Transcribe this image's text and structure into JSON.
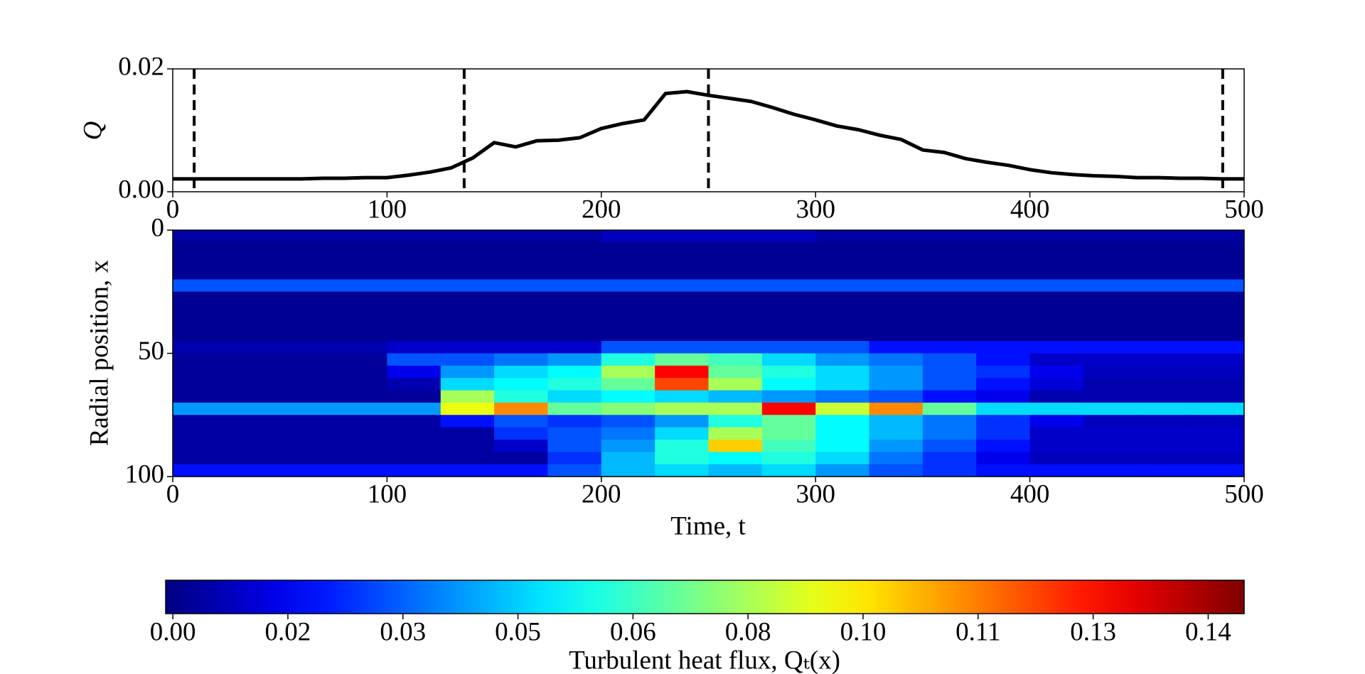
{
  "chart_data": [
    {
      "type": "line",
      "ylabel": "Q",
      "x": [
        0,
        10,
        20,
        30,
        40,
        50,
        60,
        70,
        80,
        90,
        100,
        110,
        120,
        130,
        140,
        150,
        160,
        170,
        180,
        190,
        200,
        210,
        220,
        230,
        240,
        250,
        260,
        270,
        280,
        290,
        300,
        310,
        320,
        330,
        340,
        350,
        360,
        370,
        380,
        390,
        400,
        410,
        420,
        430,
        440,
        450,
        460,
        470,
        480,
        490,
        500
      ],
      "series": [
        {
          "name": "Q",
          "color": "#000000",
          "values": [
            0.0021,
            0.0021,
            0.0021,
            0.0021,
            0.0021,
            0.0021,
            0.0021,
            0.0022,
            0.0022,
            0.0023,
            0.0023,
            0.0027,
            0.0032,
            0.0039,
            0.0055,
            0.008,
            0.0073,
            0.0083,
            0.0084,
            0.0088,
            0.0103,
            0.0111,
            0.0117,
            0.016,
            0.0163,
            0.0157,
            0.0152,
            0.0147,
            0.0137,
            0.0126,
            0.0117,
            0.0107,
            0.0101,
            0.0092,
            0.0085,
            0.0068,
            0.0064,
            0.0054,
            0.0048,
            0.0043,
            0.0036,
            0.0031,
            0.0028,
            0.0026,
            0.0025,
            0.0023,
            0.0023,
            0.0022,
            0.0022,
            0.0021,
            0.0021
          ]
        }
      ],
      "vlines": [
        10,
        136,
        250,
        490
      ],
      "xlim": [
        0,
        500
      ],
      "xticks": [
        0,
        100,
        200,
        300,
        400,
        500
      ],
      "ylim": [
        0,
        0.02
      ],
      "yticks": [
        {
          "value": 0,
          "label": "0.00"
        },
        {
          "value": 0.02,
          "label": "0.02"
        }
      ]
    },
    {
      "type": "heatmap",
      "xlabel": "Time, t",
      "ylabel": "Radial position, x",
      "colormap": "jet",
      "xbins": [
        0,
        25,
        50,
        75,
        100,
        125,
        150,
        175,
        200,
        225,
        250,
        275,
        300,
        325,
        350,
        375,
        400,
        425,
        450,
        475,
        500
      ],
      "ybins": [
        0,
        5,
        10,
        15,
        20,
        25,
        30,
        35,
        40,
        45,
        50,
        55,
        60,
        65,
        70,
        75,
        80,
        85,
        90,
        95,
        100
      ],
      "values": [
        [
          0.004,
          0.004,
          0.004,
          0.004,
          0.004,
          0.004,
          0.004,
          0.004,
          0.008,
          0.008,
          0.008,
          0.008,
          0.004,
          0.004,
          0.004,
          0.004,
          0.004,
          0.004,
          0.004,
          0.004
        ],
        [
          0.002,
          0.002,
          0.002,
          0.002,
          0.002,
          0.002,
          0.002,
          0.002,
          0.002,
          0.002,
          0.002,
          0.002,
          0.002,
          0.002,
          0.002,
          0.002,
          0.002,
          0.002,
          0.002,
          0.002
        ],
        [
          0.002,
          0.002,
          0.002,
          0.002,
          0.002,
          0.002,
          0.002,
          0.002,
          0.002,
          0.002,
          0.002,
          0.002,
          0.002,
          0.002,
          0.002,
          0.002,
          0.002,
          0.002,
          0.002,
          0.002
        ],
        [
          0.002,
          0.002,
          0.002,
          0.002,
          0.002,
          0.002,
          0.002,
          0.002,
          0.002,
          0.002,
          0.002,
          0.002,
          0.002,
          0.002,
          0.002,
          0.002,
          0.002,
          0.002,
          0.002,
          0.002
        ],
        [
          0.03,
          0.03,
          0.03,
          0.03,
          0.03,
          0.03,
          0.03,
          0.03,
          0.03,
          0.03,
          0.03,
          0.03,
          0.03,
          0.03,
          0.03,
          0.03,
          0.03,
          0.03,
          0.03,
          0.03
        ],
        [
          0.002,
          0.002,
          0.002,
          0.002,
          0.002,
          0.002,
          0.002,
          0.002,
          0.002,
          0.002,
          0.002,
          0.002,
          0.002,
          0.002,
          0.002,
          0.002,
          0.002,
          0.002,
          0.002,
          0.002
        ],
        [
          0.002,
          0.002,
          0.002,
          0.002,
          0.002,
          0.002,
          0.002,
          0.002,
          0.002,
          0.002,
          0.002,
          0.002,
          0.002,
          0.002,
          0.002,
          0.002,
          0.002,
          0.002,
          0.002,
          0.002
        ],
        [
          0.002,
          0.002,
          0.002,
          0.002,
          0.002,
          0.002,
          0.002,
          0.002,
          0.002,
          0.002,
          0.002,
          0.002,
          0.002,
          0.002,
          0.002,
          0.002,
          0.002,
          0.002,
          0.002,
          0.002
        ],
        [
          0.002,
          0.002,
          0.002,
          0.002,
          0.002,
          0.002,
          0.002,
          0.002,
          0.002,
          0.002,
          0.002,
          0.002,
          0.002,
          0.002,
          0.002,
          0.002,
          0.002,
          0.002,
          0.002,
          0.002
        ],
        [
          0.006,
          0.006,
          0.006,
          0.006,
          0.01,
          0.01,
          0.01,
          0.01,
          0.03,
          0.03,
          0.03,
          0.03,
          0.03,
          0.02,
          0.02,
          0.02,
          0.02,
          0.02,
          0.02,
          0.02
        ],
        [
          0.003,
          0.003,
          0.003,
          0.003,
          0.03,
          0.03,
          0.035,
          0.04,
          0.06,
          0.07,
          0.065,
          0.05,
          0.04,
          0.035,
          0.03,
          0.02,
          0.01,
          0.01,
          0.01,
          0.01
        ],
        [
          0.003,
          0.003,
          0.003,
          0.003,
          0.015,
          0.04,
          0.05,
          0.055,
          0.08,
          0.13,
          0.07,
          0.06,
          0.05,
          0.04,
          0.03,
          0.025,
          0.015,
          0.008,
          0.008,
          0.008
        ],
        [
          0.003,
          0.003,
          0.003,
          0.003,
          0.006,
          0.05,
          0.055,
          0.06,
          0.07,
          0.12,
          0.08,
          0.055,
          0.05,
          0.04,
          0.03,
          0.02,
          0.012,
          0.006,
          0.006,
          0.006
        ],
        [
          0.003,
          0.003,
          0.003,
          0.003,
          0.003,
          0.08,
          0.06,
          0.05,
          0.055,
          0.05,
          0.045,
          0.04,
          0.035,
          0.03,
          0.02,
          0.015,
          0.006,
          0.006,
          0.006,
          0.006
        ],
        [
          0.04,
          0.04,
          0.04,
          0.04,
          0.04,
          0.09,
          0.11,
          0.07,
          0.075,
          0.08,
          0.08,
          0.13,
          0.085,
          0.11,
          0.07,
          0.05,
          0.05,
          0.05,
          0.05,
          0.05
        ],
        [
          0.004,
          0.004,
          0.004,
          0.004,
          0.004,
          0.02,
          0.03,
          0.025,
          0.03,
          0.04,
          0.06,
          0.07,
          0.055,
          0.045,
          0.035,
          0.025,
          0.015,
          0.008,
          0.008,
          0.008
        ],
        [
          0.004,
          0.004,
          0.004,
          0.004,
          0.004,
          0.004,
          0.025,
          0.03,
          0.035,
          0.05,
          0.08,
          0.07,
          0.055,
          0.045,
          0.035,
          0.025,
          0.01,
          0.01,
          0.01,
          0.01
        ],
        [
          0.004,
          0.004,
          0.004,
          0.004,
          0.004,
          0.004,
          0.01,
          0.03,
          0.04,
          0.06,
          0.1,
          0.065,
          0.055,
          0.04,
          0.03,
          0.02,
          0.01,
          0.01,
          0.01,
          0.01
        ],
        [
          0.004,
          0.004,
          0.004,
          0.004,
          0.004,
          0.004,
          0.004,
          0.025,
          0.045,
          0.06,
          0.055,
          0.06,
          0.05,
          0.035,
          0.025,
          0.015,
          0.008,
          0.008,
          0.008,
          0.008
        ],
        [
          0.02,
          0.02,
          0.02,
          0.02,
          0.02,
          0.02,
          0.02,
          0.03,
          0.045,
          0.05,
          0.045,
          0.05,
          0.04,
          0.03,
          0.025,
          0.02,
          0.02,
          0.02,
          0.02,
          0.02
        ]
      ],
      "xlim": [
        0,
        500
      ],
      "xticks": [
        0,
        100,
        200,
        300,
        400,
        500
      ],
      "ylim": [
        100,
        0
      ],
      "yticks": [
        0,
        50,
        100
      ],
      "colorbar": {
        "label": "Turbulent heat flux, Qₜ(x)",
        "lim": [
          -0.001,
          0.149
        ],
        "ticks": [
          {
            "value": 0,
            "label": "0.00"
          },
          {
            "value": 0.016,
            "label": "0.02"
          },
          {
            "value": 0.032,
            "label": "0.03"
          },
          {
            "value": 0.048,
            "label": "0.05"
          },
          {
            "value": 0.064,
            "label": "0.06"
          },
          {
            "value": 0.08,
            "label": "0.08"
          },
          {
            "value": 0.096,
            "label": "0.10"
          },
          {
            "value": 0.112,
            "label": "0.11"
          },
          {
            "value": 0.128,
            "label": "0.13"
          },
          {
            "value": 0.144,
            "label": "0.14"
          }
        ]
      }
    }
  ]
}
